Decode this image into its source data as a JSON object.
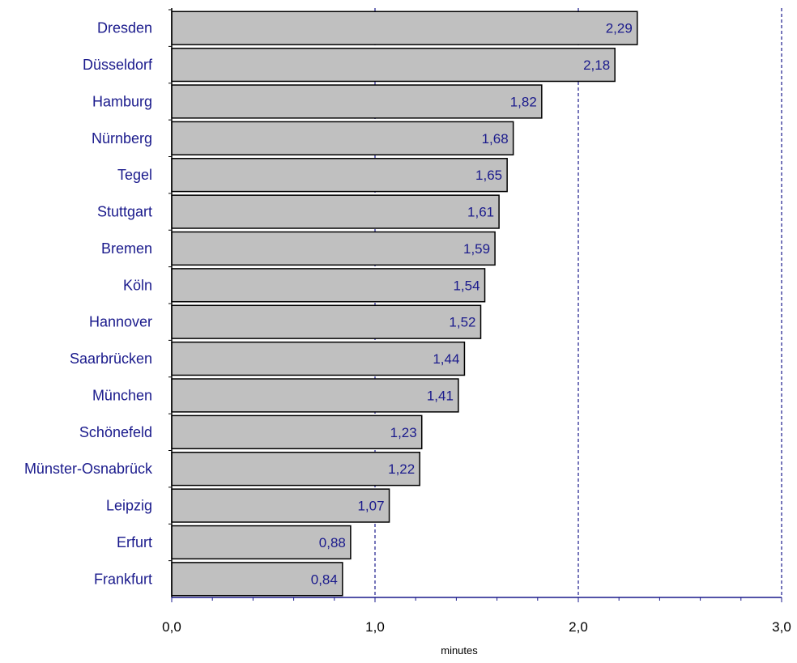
{
  "chart_data": {
    "type": "bar",
    "orientation": "horizontal",
    "categories": [
      "Dresden",
      "Düsseldorf",
      "Hamburg",
      "Nürnberg",
      "Tegel",
      "Stuttgart",
      "Bremen",
      "Köln",
      "Hannover",
      "Saarbrücken",
      "München",
      "Schönefeld",
      "Münster-Osnabrück",
      "Leipzig",
      "Erfurt",
      "Frankfurt"
    ],
    "values": [
      2.29,
      2.18,
      1.82,
      1.68,
      1.65,
      1.61,
      1.59,
      1.54,
      1.52,
      1.44,
      1.41,
      1.23,
      1.22,
      1.07,
      0.88,
      0.84
    ],
    "value_labels": [
      "2,29",
      "2,18",
      "1,82",
      "1,68",
      "1,65",
      "1,61",
      "1,59",
      "1,54",
      "1,52",
      "1,44",
      "1,41",
      "1,23",
      "1,22",
      "1,07",
      "0,88",
      "0,84"
    ],
    "title": "",
    "xlabel": "minutes",
    "ylabel": "",
    "xlim": [
      0,
      3
    ],
    "x_ticks": [
      0,
      1,
      2,
      3
    ],
    "x_tick_labels": [
      "0,0",
      "1,0",
      "2,0",
      "3,0"
    ],
    "grid": "vertical dashed at major ticks",
    "legend": "none",
    "colors": {
      "bar_fill": "#c0c0c0",
      "bar_stroke": "#000000",
      "label_text": "#1a1a8c",
      "grid": "#1a1a8c",
      "axis": "#1a1a8c",
      "tick_text": "#000000"
    }
  }
}
